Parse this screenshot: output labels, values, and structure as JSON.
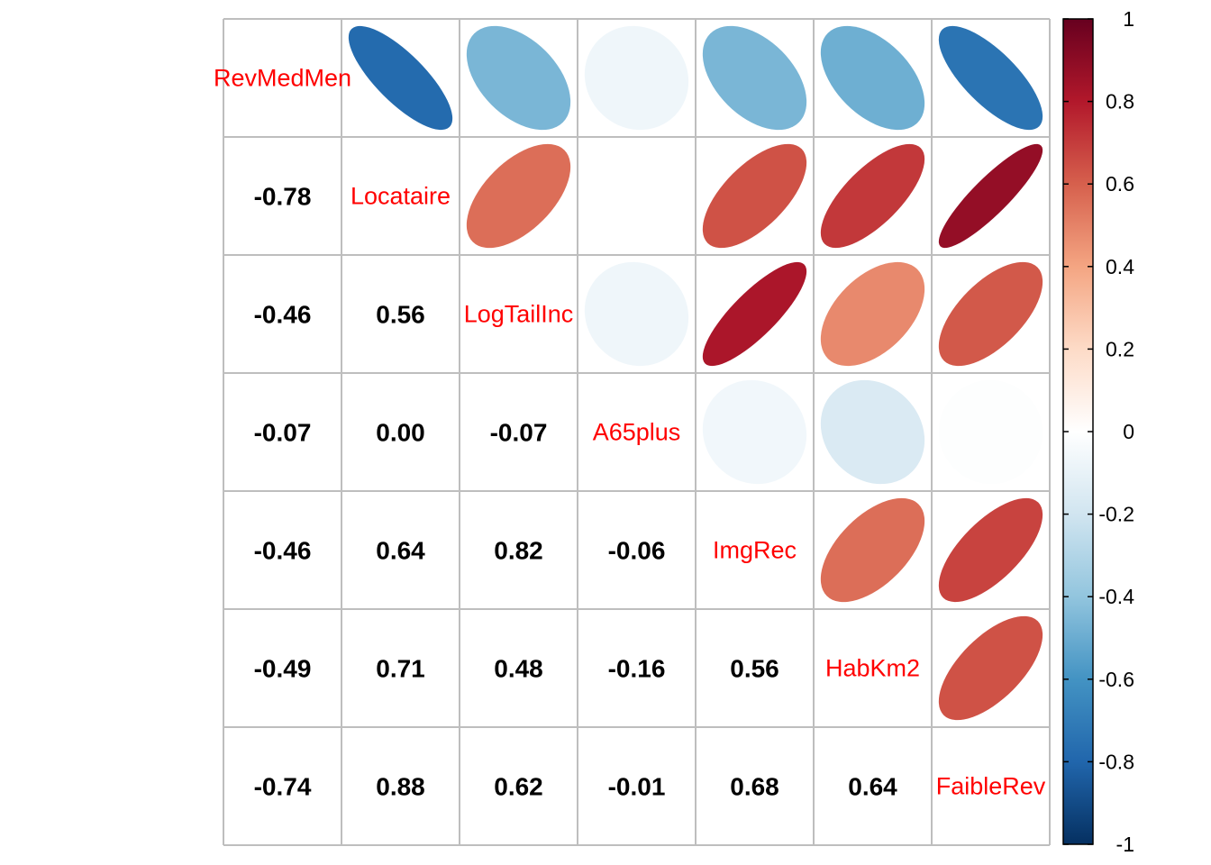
{
  "chart_data": {
    "type": "heatmap",
    "variables": [
      "RevMedMen",
      "Locataire",
      "LogTailInc",
      "A65plus",
      "ImgRec",
      "HabKm2",
      "FaibleRev"
    ],
    "matrix": [
      [
        1.0,
        -0.78,
        -0.46,
        -0.07,
        -0.46,
        -0.49,
        -0.74
      ],
      [
        -0.78,
        1.0,
        0.56,
        0.0,
        0.64,
        0.71,
        0.88
      ],
      [
        -0.46,
        0.56,
        1.0,
        -0.07,
        0.82,
        0.48,
        0.62
      ],
      [
        -0.07,
        0.0,
        -0.07,
        1.0,
        -0.06,
        -0.16,
        -0.01
      ],
      [
        -0.46,
        0.64,
        0.82,
        -0.06,
        1.0,
        0.56,
        0.68
      ],
      [
        -0.49,
        0.71,
        0.48,
        -0.16,
        0.56,
        1.0,
        0.64
      ],
      [
        -0.74,
        0.88,
        0.62,
        -0.01,
        0.68,
        0.64,
        1.0
      ]
    ],
    "lower_labels": [
      [
        "-0.78"
      ],
      [
        "-0.46",
        "0.56"
      ],
      [
        "-0.07",
        "0.00",
        "-0.07"
      ],
      [
        "-0.46",
        "0.64",
        "0.82",
        "-0.06"
      ],
      [
        "-0.49",
        "0.71",
        "0.48",
        "-0.16",
        "0.56"
      ],
      [
        "-0.74",
        "0.88",
        "0.62",
        "-0.01",
        "0.68",
        "0.64"
      ]
    ],
    "upper_style": "ellipse",
    "lower_style": "number",
    "colorbar": {
      "ticks": [
        "1",
        "0.8",
        "0.6",
        "0.4",
        "0.2",
        "0",
        "-0.2",
        "-0.4",
        "-0.6",
        "-0.8",
        "-1"
      ],
      "range": [
        -1,
        1
      ],
      "colors": [
        "#053061",
        "#2166AC",
        "#4393C3",
        "#92C5DE",
        "#D1E5F0",
        "#FFFFFF",
        "#FDDBC7",
        "#F4A582",
        "#D6604D",
        "#B2182B",
        "#67001F"
      ]
    },
    "diag_label_color": "#FF0000",
    "grid_color": "#BEBEBE"
  }
}
